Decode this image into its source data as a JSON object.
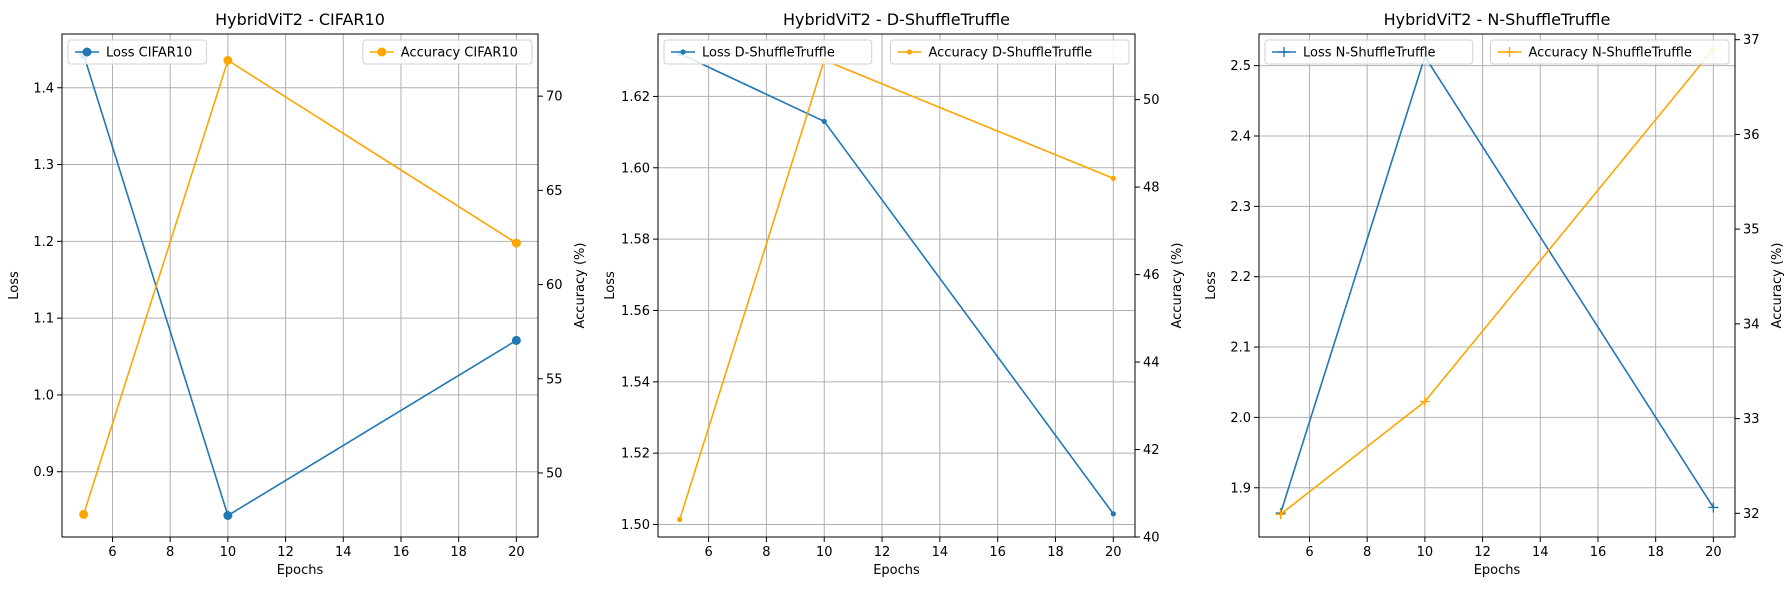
{
  "chart_data": [
    {
      "type": "line",
      "title": "HybridViT2 - CIFAR10",
      "xlabel": "Epochs",
      "ylabel": "Loss",
      "y2label": "Accuracy (%)",
      "x": [
        5,
        10,
        20
      ],
      "xlim": [
        4.25,
        20.75
      ],
      "ylim": [
        0.815,
        1.47
      ],
      "y2lim": [
        46.6,
        73.3
      ],
      "xticks": [
        6,
        8,
        10,
        12,
        14,
        16,
        18,
        20
      ],
      "yticks": [
        0.9,
        1.0,
        1.1,
        1.2,
        1.3,
        1.4
      ],
      "y2ticks": [
        50,
        55,
        60,
        65,
        70
      ],
      "marker": "circle",
      "grid": true,
      "series": [
        {
          "name": "Loss CIFAR10",
          "axis": "left",
          "color": "#1f77b4",
          "values": [
            1.443,
            0.843,
            1.071
          ]
        },
        {
          "name": "Accuracy CIFAR10",
          "axis": "right",
          "color": "#ffa500",
          "values": [
            47.8,
            71.9,
            62.2
          ]
        }
      ],
      "legend": [
        {
          "label": "Loss CIFAR10",
          "placement": "top-left"
        },
        {
          "label": "Accuracy CIFAR10",
          "placement": "top-right"
        }
      ]
    },
    {
      "type": "line",
      "title": "HybridViT2 - D-ShuffleTruffle",
      "xlabel": "Epochs",
      "ylabel": "Loss",
      "y2label": "Accuracy (%)",
      "x": [
        5,
        10,
        20
      ],
      "xlim": [
        4.25,
        20.75
      ],
      "ylim": [
        1.4965,
        1.6375
      ],
      "y2lim": [
        40.0,
        51.5
      ],
      "xticks": [
        6,
        8,
        10,
        12,
        14,
        16,
        18,
        20
      ],
      "yticks": [
        1.5,
        1.52,
        1.54,
        1.56,
        1.58,
        1.6,
        1.62
      ],
      "y2ticks": [
        40,
        42,
        44,
        46,
        48,
        50
      ],
      "marker": "point",
      "grid": true,
      "series": [
        {
          "name": "Loss D-ShuffleTruffle",
          "axis": "left",
          "color": "#1f77b4",
          "values": [
            1.632,
            1.613,
            1.503
          ]
        },
        {
          "name": "Accuracy D-ShuffleTruffle",
          "axis": "right",
          "color": "#ffa500",
          "values": [
            40.4,
            50.9,
            48.2
          ]
        }
      ],
      "legend": [
        {
          "label": "Loss D-ShuffleTruffle",
          "placement": "top-left"
        },
        {
          "label": "Accuracy D-ShuffleTruffle",
          "placement": "top-right"
        }
      ]
    },
    {
      "type": "line",
      "title": "HybridViT2 - N-ShuffleTruffle",
      "xlabel": "Epochs",
      "ylabel": "Loss",
      "y2label": "Accuracy (%)",
      "x": [
        5,
        10,
        20
      ],
      "xlim": [
        4.25,
        20.75
      ],
      "ylim": [
        1.83,
        2.545
      ],
      "y2lim": [
        31.75,
        37.06
      ],
      "xticks": [
        6,
        8,
        10,
        12,
        14,
        16,
        18,
        20
      ],
      "yticks": [
        1.9,
        2.0,
        2.1,
        2.2,
        2.3,
        2.4,
        2.5
      ],
      "y2ticks": [
        32,
        33,
        34,
        35,
        36,
        37
      ],
      "marker": "plus",
      "grid": true,
      "series": [
        {
          "name": "Loss N-ShuffleTruffle",
          "axis": "left",
          "color": "#1f77b4",
          "values": [
            1.864,
            2.513,
            1.872
          ]
        },
        {
          "name": "Accuracy N-ShuffleTruffle",
          "axis": "right",
          "color": "#ffa500",
          "values": [
            31.99,
            33.18,
            36.9
          ]
        }
      ],
      "legend": [
        {
          "label": "Loss N-ShuffleTruffle",
          "placement": "top-left"
        },
        {
          "label": "Accuracy N-ShuffleTruffle",
          "placement": "top-right"
        }
      ]
    }
  ]
}
